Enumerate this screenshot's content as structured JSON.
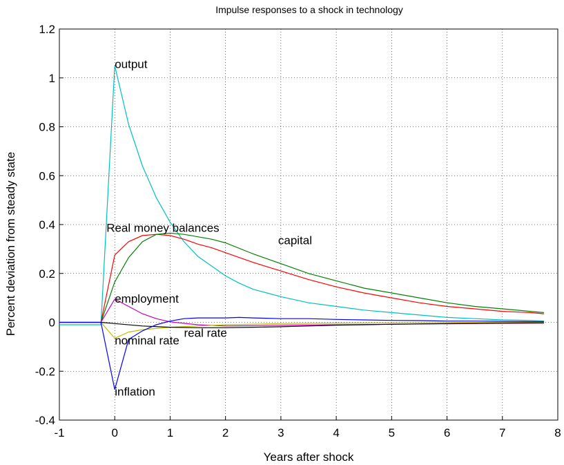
{
  "chart_data": {
    "type": "line",
    "title": "Impulse responses to a shock in technology",
    "xlabel": "Years after shock",
    "ylabel": "Percent deviation from steady state",
    "xlim": [
      -1,
      8
    ],
    "ylim": [
      -0.4,
      1.2
    ],
    "xticks": [
      "-1",
      "0",
      "1",
      "2",
      "3",
      "4",
      "5",
      "6",
      "7",
      "8"
    ],
    "yticks": [
      "-0.4",
      "-0.2",
      "0",
      "0.2",
      "0.4",
      "0.6",
      "0.8",
      "1",
      "1.2"
    ],
    "grid": true,
    "series": [
      {
        "name": "output",
        "color": "#00bfbf",
        "x": [
          -1,
          -0.25,
          0,
          0.25,
          0.5,
          0.75,
          1,
          1.25,
          1.5,
          1.75,
          2,
          2.25,
          2.5,
          2.75,
          3,
          3.5,
          4,
          4.5,
          5,
          5.5,
          6,
          6.5,
          7,
          7.5,
          7.75
        ],
        "y": [
          -0.01,
          -0.01,
          1.05,
          0.81,
          0.64,
          0.51,
          0.41,
          0.33,
          0.27,
          0.23,
          0.19,
          0.16,
          0.135,
          0.12,
          0.105,
          0.08,
          0.065,
          0.05,
          0.04,
          0.03,
          0.02,
          0.015,
          0.01,
          0.008,
          0.005
        ]
      },
      {
        "name": "Real money balances",
        "color": "#ff0000",
        "x": [
          -0.25,
          0,
          0.25,
          0.5,
          0.75,
          1,
          1.25,
          1.5,
          1.75,
          2,
          2.5,
          3,
          3.5,
          4,
          4.5,
          5,
          5.5,
          6,
          6.5,
          7,
          7.5,
          7.75
        ],
        "y": [
          0,
          0.275,
          0.33,
          0.355,
          0.36,
          0.355,
          0.34,
          0.32,
          0.305,
          0.285,
          0.245,
          0.21,
          0.175,
          0.145,
          0.12,
          0.1,
          0.08,
          0.065,
          0.055,
          0.045,
          0.04,
          0.035
        ]
      },
      {
        "name": "capital",
        "color": "#008000",
        "x": [
          -0.25,
          0,
          0.25,
          0.5,
          0.75,
          1,
          1.25,
          1.5,
          1.75,
          2,
          2.5,
          3,
          3.5,
          4,
          4.5,
          5,
          5.5,
          6,
          6.5,
          7,
          7.5,
          7.75
        ],
        "y": [
          0,
          0.165,
          0.265,
          0.33,
          0.36,
          0.365,
          0.36,
          0.35,
          0.34,
          0.325,
          0.28,
          0.24,
          0.2,
          0.17,
          0.14,
          0.12,
          0.1,
          0.08,
          0.065,
          0.055,
          0.045,
          0.04
        ]
      },
      {
        "name": "employment",
        "color": "#bf00bf",
        "x": [
          -0.25,
          0,
          0.25,
          0.5,
          0.75,
          1,
          1.5,
          2,
          3,
          4,
          5,
          6,
          7,
          7.75
        ],
        "y": [
          0,
          0.095,
          0.065,
          0.035,
          0.015,
          0.002,
          -0.01,
          -0.015,
          -0.012,
          -0.01,
          -0.008,
          -0.006,
          -0.004,
          -0.003
        ]
      },
      {
        "name": "nominal rate",
        "color": "#bfbf00",
        "x": [
          -1,
          -0.25,
          0,
          0.25,
          0.5,
          1,
          1.5,
          2,
          3,
          4,
          5,
          6,
          7,
          7.75
        ],
        "y": [
          0,
          0,
          -0.065,
          -0.04,
          -0.03,
          -0.02,
          -0.015,
          -0.01,
          -0.005,
          -0.003,
          -0.002,
          -0.001,
          0,
          0
        ]
      },
      {
        "name": "real rate",
        "color": "#000000",
        "x": [
          -1,
          -0.25,
          0,
          0.5,
          1,
          1.5,
          2,
          2.5,
          3,
          3.5,
          4,
          4.5,
          5,
          6,
          7,
          7.75
        ],
        "y": [
          0,
          0,
          -0.005,
          -0.015,
          -0.02,
          -0.022,
          -0.022,
          -0.02,
          -0.018,
          -0.015,
          -0.012,
          -0.01,
          -0.008,
          -0.005,
          -0.003,
          -0.002
        ]
      },
      {
        "name": "inflation",
        "color": "#0000ff",
        "x": [
          -1,
          -0.25,
          0,
          0.25,
          0.5,
          0.75,
          1,
          1.25,
          1.5,
          1.75,
          2,
          2.25,
          2.5,
          3,
          3.5,
          4,
          4.5,
          5,
          5.5,
          6,
          6.5,
          7,
          7.5,
          7.75
        ],
        "y": [
          0,
          0,
          -0.275,
          -0.07,
          -0.035,
          -0.01,
          0.005,
          0.015,
          0.018,
          0.018,
          0.018,
          0.02,
          0.018,
          0.015,
          0.015,
          0.012,
          0.01,
          0.008,
          0.007,
          0.005,
          0.005,
          0.004,
          0.003,
          0.003
        ]
      }
    ],
    "annotations": [
      {
        "text": "output",
        "x": 0.0,
        "y": 1.04
      },
      {
        "text": "Real money balances",
        "x": -0.15,
        "y": 0.37
      },
      {
        "text": "capital",
        "x": 2.95,
        "y": 0.32
      },
      {
        "text": "employment",
        "x": 0.0,
        "y": 0.08
      },
      {
        "text": "real rate",
        "x": 1.25,
        "y": -0.06
      },
      {
        "text": "nominal rate",
        "x": 0.0,
        "y": -0.09
      },
      {
        "text": "inflation",
        "x": 0.0,
        "y": -0.3
      }
    ]
  }
}
